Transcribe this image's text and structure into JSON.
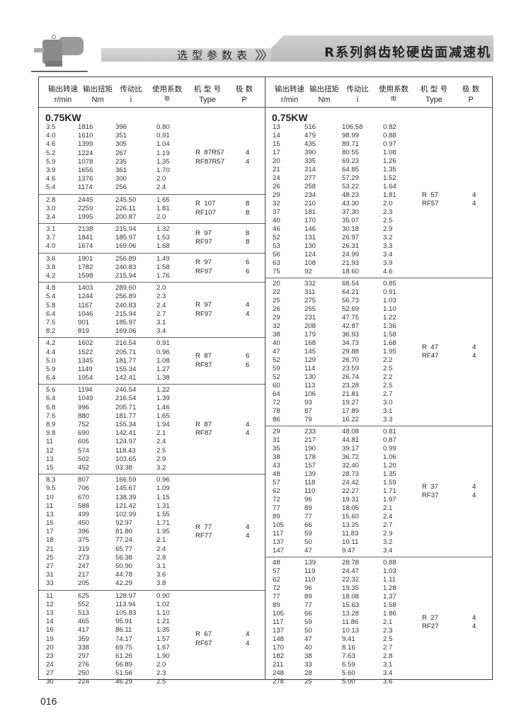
{
  "header": {
    "subtitle": "选型参数表",
    "chevrons": "〉〉〉",
    "title": "R系列斜齿轮硬齿面减速机",
    "image": "gear-motor-photo"
  },
  "columns": [
    {
      "zh": "输出转速",
      "en": "r/min"
    },
    {
      "zh": "输出扭矩",
      "en": "Nm"
    },
    {
      "zh": "传动比",
      "en": "i"
    },
    {
      "zh": "使用系数",
      "en": "fB"
    },
    {
      "zh": "机 型 号",
      "en": "Type"
    },
    {
      "zh": "极  数",
      "en": "P"
    }
  ],
  "left": [
    {
      "power": "0.75KW",
      "types": [
        "R  87R57",
        "RF87R57"
      ],
      "poles": [
        "4",
        "4"
      ],
      "rows": [
        [
          "3.5",
          "1816",
          "396",
          "0.80"
        ],
        [
          "4.0",
          "1610",
          "351",
          "0.91"
        ],
        [
          "4.6",
          "1399",
          "305",
          "1.04"
        ],
        [
          "5.2",
          "1224",
          "267",
          "1.19"
        ],
        [
          "5.9",
          "1078",
          "235",
          "1.35"
        ],
        [
          "3.9",
          "1656",
          "361",
          "1.70"
        ],
        [
          "4.6",
          "1376",
          "300",
          "2.0"
        ],
        [
          "5.4",
          "1174",
          "256",
          "2.4"
        ]
      ]
    },
    {
      "types": [
        "R  107",
        "RF107"
      ],
      "poles": [
        "8",
        "8"
      ],
      "rows": [
        [
          "2.8",
          "2445",
          "245.50",
          "1.65"
        ],
        [
          "3.0",
          "2259",
          "226.11",
          "1.81"
        ],
        [
          "3.4",
          "1995",
          "200.87",
          "2.0"
        ]
      ]
    },
    {
      "types": [
        "R  97",
        "RF97"
      ],
      "poles": [
        "8",
        "8"
      ],
      "rows": [
        [
          "3.1",
          "2138",
          "215.94",
          "1.32"
        ],
        [
          "3.7",
          "1841",
          "185.97",
          "1.53"
        ],
        [
          "4.0",
          "1674",
          "169.06",
          "1.68"
        ]
      ]
    },
    {
      "types": [
        "R  97",
        "RF97"
      ],
      "poles": [
        "6",
        "6"
      ],
      "rows": [
        [
          "3.6",
          "1901",
          "256.89",
          "1.49"
        ],
        [
          "3.8",
          "1782",
          "240.83",
          "1.58"
        ],
        [
          "4.2",
          "1598",
          "215.94",
          "1.76"
        ]
      ]
    },
    {
      "types": [
        "R  97",
        "RF97"
      ],
      "poles": [
        "4",
        "4"
      ],
      "rows": [
        [
          "4.8",
          "1403",
          "289.60",
          "2.0"
        ],
        [
          "5.4",
          "1244",
          "256.89",
          "2.3"
        ],
        [
          "5.8",
          "1167",
          "240.83",
          "2.4"
        ],
        [
          "6.4",
          "1046",
          "215.94",
          "2.7"
        ],
        [
          "7.5",
          "901",
          "185.97",
          "3.1"
        ],
        [
          "8.2",
          "819",
          "169.06",
          "3.4"
        ]
      ]
    },
    {
      "types": [
        "R  87",
        "RF87"
      ],
      "poles": [
        "6",
        "6"
      ],
      "rows": [
        [
          "4.2",
          "1602",
          "216.54",
          "0.91"
        ],
        [
          "4.4",
          "1522",
          "205.71",
          "0.96"
        ],
        [
          "5.0",
          "1345",
          "181.77",
          "1.08"
        ],
        [
          "5.9",
          "1149",
          "155.34",
          "1.27"
        ],
        [
          "6.4",
          "1054",
          "142.41",
          "1.38"
        ]
      ]
    },
    {
      "types": [
        "R  87",
        "RF87"
      ],
      "poles": [
        "4",
        "4"
      ],
      "rows": [
        [
          "5.6",
          "1194",
          "246.54",
          "1.22"
        ],
        [
          "6.4",
          "1049",
          "216.54",
          "1.39"
        ],
        [
          "6.8",
          "996",
          "205.71",
          "1.46"
        ],
        [
          "7.6",
          "880",
          "181.77",
          "1.65"
        ],
        [
          "8.9",
          "752",
          "155.34",
          "1.94"
        ],
        [
          "9.8",
          "690",
          "142.41",
          "2.1"
        ],
        [
          "11",
          "605",
          "124.97",
          "2.4"
        ],
        [
          "12",
          "574",
          "118.43",
          "2.5"
        ],
        [
          "13",
          "502",
          "103.65",
          "2.9"
        ],
        [
          "15",
          "452",
          "93.38",
          "3.2"
        ]
      ]
    },
    {
      "types": [
        "R  77",
        "RF77"
      ],
      "poles": [
        "4",
        "4"
      ],
      "rows": [
        [
          "8.3",
          "807",
          "166.59",
          "0.96"
        ],
        [
          "9.5",
          "706",
          "145.67",
          "1.09"
        ],
        [
          "10",
          "670",
          "138.39",
          "1.15"
        ],
        [
          "11",
          "588",
          "121.42",
          "1.31"
        ],
        [
          "13",
          "499",
          "102.99",
          "1.55"
        ],
        [
          "15",
          "450",
          "92.97",
          "1.71"
        ],
        [
          "17",
          "396",
          "81.80",
          "1.95"
        ],
        [
          "18",
          "375",
          "77.24",
          "2.1"
        ],
        [
          "21",
          "319",
          "65.77",
          "2.4"
        ],
        [
          "25",
          "273",
          "56.38",
          "2.8"
        ],
        [
          "27",
          "247",
          "50.90",
          "3.1"
        ],
        [
          "31",
          "217",
          "44.78",
          "3.6"
        ],
        [
          "33",
          "205",
          "42.29",
          "3.8"
        ]
      ]
    },
    {
      "types": [
        "R  67",
        "RF67"
      ],
      "poles": [
        "4",
        "4"
      ],
      "rows": [
        [
          "11",
          "625",
          "128.97",
          "0.90"
        ],
        [
          "12",
          "552",
          "113.94",
          "1.02"
        ],
        [
          "13",
          "513",
          "105.83",
          "1.10"
        ],
        [
          "14",
          "465",
          "95.91",
          "1.21"
        ],
        [
          "16",
          "417",
          "86.11",
          "1.35"
        ],
        [
          "19",
          "359",
          "74.17",
          "1.57"
        ],
        [
          "20",
          "338",
          "69.75",
          "1.67"
        ],
        [
          "23",
          "297",
          "61.26",
          "1.90"
        ],
        [
          "24",
          "276",
          "56.89",
          "2.0"
        ],
        [
          "27",
          "250",
          "51.56",
          "2.3"
        ],
        [
          "30",
          "224",
          "46.29",
          "2.5"
        ]
      ]
    }
  ],
  "right": [
    {
      "power": "0.75KW",
      "types": [
        "R  57",
        "RF57"
      ],
      "poles": [
        "4",
        "4"
      ],
      "rows": [
        [
          "13",
          "516",
          "106.58",
          "0.82"
        ],
        [
          "14",
          "479",
          "98.99",
          "0.88"
        ],
        [
          "15",
          "435",
          "89.71",
          "0.97"
        ],
        [
          "17",
          "390",
          "80.55",
          "1.08"
        ],
        [
          "20",
          "335",
          "69.23",
          "1.26"
        ],
        [
          "21",
          "314",
          "64.85",
          "1.35"
        ],
        [
          "24",
          "277",
          "57.29",
          "1.52"
        ],
        [
          "26",
          "258",
          "53.22",
          "1.64"
        ],
        [
          "29",
          "234",
          "48.23",
          "1.81"
        ],
        [
          "32",
          "210",
          "43.30",
          "2.0"
        ],
        [
          "37",
          "181",
          "37.30",
          "2.3"
        ],
        [
          "40",
          "170",
          "35.07",
          "2.5"
        ],
        [
          "46",
          "146",
          "30.18",
          "2.9"
        ],
        [
          "52",
          "131",
          "26.97",
          "3.2"
        ],
        [
          "53",
          "130",
          "26.31",
          "3.3"
        ],
        [
          "56",
          "124",
          "24.99",
          "3.4"
        ],
        [
          "63",
          "108",
          "21.93",
          "3.9"
        ],
        [
          "75",
          "92",
          "18.60",
          "4.6"
        ]
      ]
    },
    {
      "types": [
        "R  47",
        "RF47"
      ],
      "poles": [
        "4",
        "4"
      ],
      "rows": [
        [
          "20",
          "332",
          "68.54",
          "0.85"
        ],
        [
          "22",
          "311",
          "64.21",
          "0.91"
        ],
        [
          "25",
          "275",
          "56.73",
          "1.03"
        ],
        [
          "26",
          "255",
          "52.69",
          "1.10"
        ],
        [
          "29",
          "231",
          "47.75",
          "1.22"
        ],
        [
          "32",
          "208",
          "42.87",
          "1.36"
        ],
        [
          "38",
          "179",
          "36.93",
          "1.58"
        ],
        [
          "40",
          "168",
          "34.73",
          "1.68"
        ],
        [
          "47",
          "145",
          "29.88",
          "1.95"
        ],
        [
          "52",
          "129",
          "26.70",
          "2.2"
        ],
        [
          "59",
          "114",
          "23.59",
          "2.5"
        ],
        [
          "52",
          "130",
          "26.74",
          "2.2"
        ],
        [
          "60",
          "113",
          "23.28",
          "2.5"
        ],
        [
          "64",
          "106",
          "21.81",
          "2.7"
        ],
        [
          "72",
          "93",
          "19.27",
          "3.0"
        ],
        [
          "78",
          "87",
          "17.89",
          "3.1"
        ],
        [
          "86",
          "79",
          "16.22",
          "3.3"
        ]
      ]
    },
    {
      "types": [
        "R  37",
        "RF37"
      ],
      "poles": [
        "4",
        "4"
      ],
      "rows": [
        [
          "29",
          "233",
          "48.08",
          "0.81"
        ],
        [
          "31",
          "217",
          "44.81",
          "0.87"
        ],
        [
          "35",
          "190",
          "39.17",
          "0.99"
        ],
        [
          "38",
          "178",
          "36.72",
          "1.06"
        ],
        [
          "43",
          "157",
          "32.40",
          "1.20"
        ],
        [
          "48",
          "139",
          "28.73",
          "1.35"
        ],
        [
          "57",
          "118",
          "24.42",
          "1.59"
        ],
        [
          "62",
          "110",
          "22.27",
          "1.71"
        ],
        [
          "72",
          "96",
          "19.31",
          "1.97"
        ],
        [
          "77",
          "89",
          "18.05",
          "2.1"
        ],
        [
          "89",
          "77",
          "15.60",
          "2.4"
        ],
        [
          "105",
          "66",
          "13.25",
          "2.7"
        ],
        [
          "117",
          "59",
          "11.83",
          "2.9"
        ],
        [
          "137",
          "50",
          "10.11",
          "3.2"
        ],
        [
          "147",
          "47",
          "9.47",
          "3.4"
        ]
      ]
    },
    {
      "types": [
        "R  27",
        "RF27"
      ],
      "poles": [
        "4",
        "4"
      ],
      "rows": [
        [
          "48",
          "139",
          "28.78",
          "0.88"
        ],
        [
          "57",
          "119",
          "24.47",
          "1.03"
        ],
        [
          "62",
          "110",
          "22.32",
          "1.11"
        ],
        [
          "72",
          "96",
          "19.35",
          "1.28"
        ],
        [
          "77",
          "89",
          "18.08",
          "1.37"
        ],
        [
          "89",
          "77",
          "15.63",
          "1.58"
        ],
        [
          "105",
          "66",
          "13.28",
          "1.86"
        ],
        [
          "117",
          "59",
          "11.86",
          "2.1"
        ],
        [
          "137",
          "50",
          "10.13",
          "2.3"
        ],
        [
          "148",
          "47",
          "9.41",
          "2.5"
        ],
        [
          "170",
          "40",
          "8.16",
          "2.7"
        ],
        [
          "182",
          "38",
          "7.63",
          "2.8"
        ],
        [
          "211",
          "33",
          "6.59",
          "3.1"
        ],
        [
          "248",
          "28",
          "5.60",
          "3.4"
        ],
        [
          "278",
          "25",
          "5.00",
          "3.6"
        ]
      ]
    }
  ],
  "page_number": "016"
}
